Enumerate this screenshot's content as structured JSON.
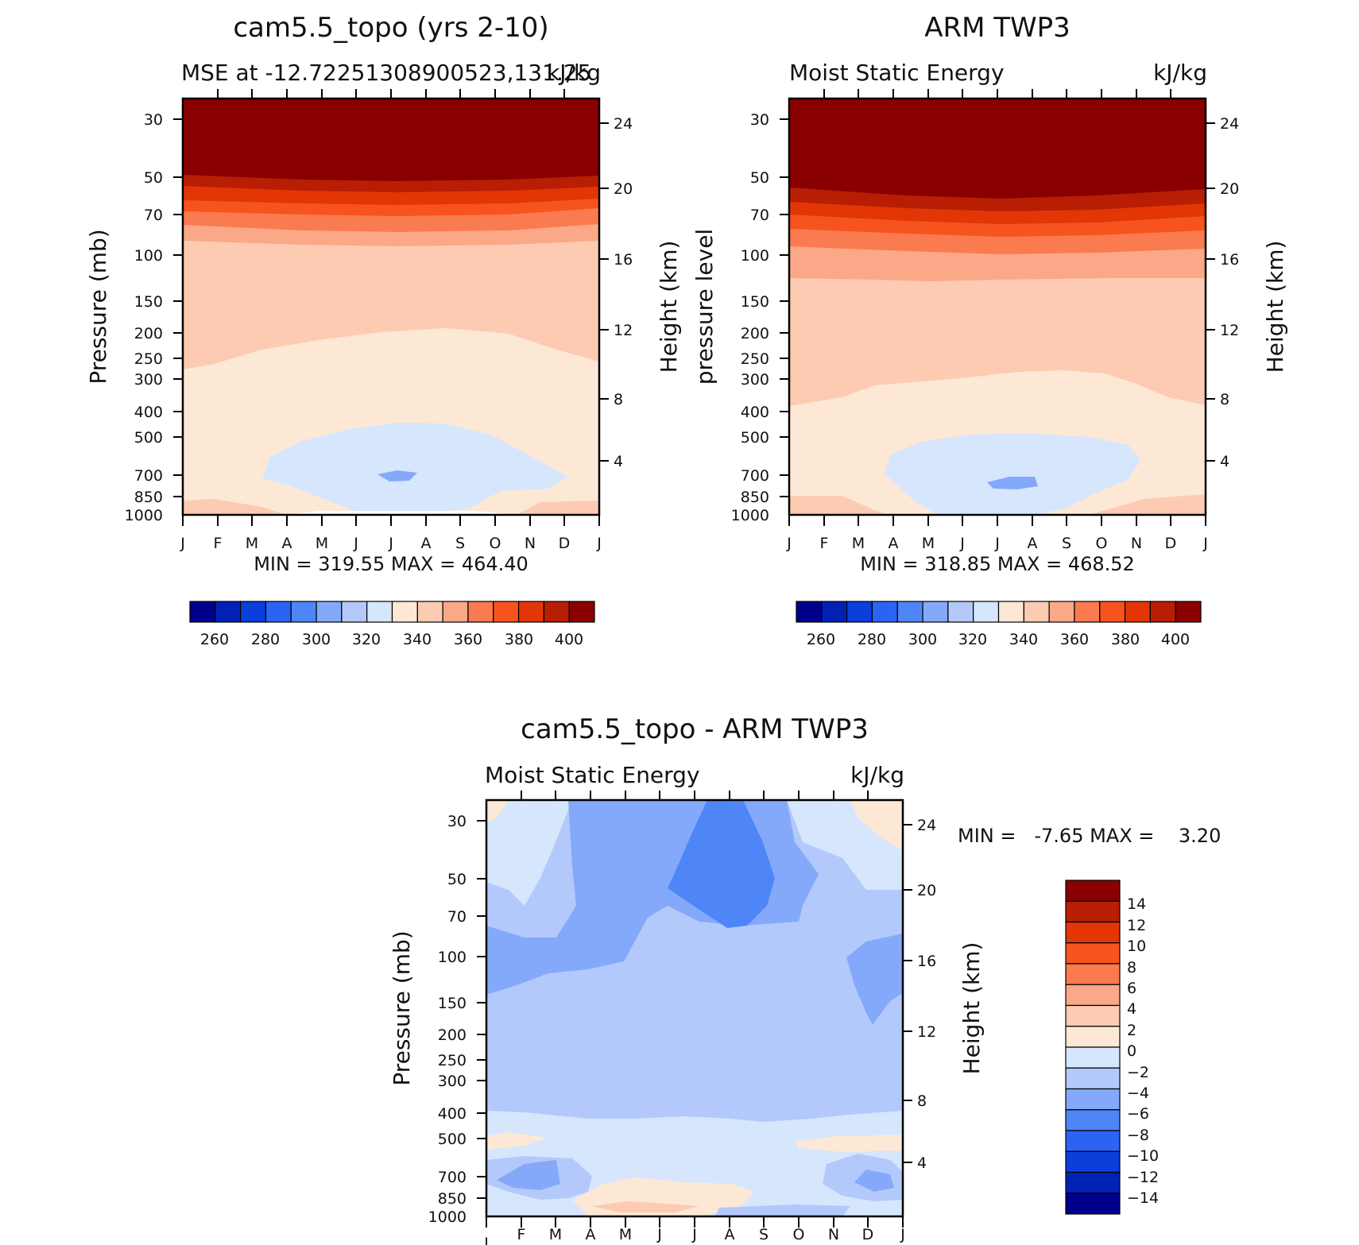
{
  "chart_data": [
    {
      "type": "contour",
      "title": "cam5.5_topo (yrs 2-10)",
      "subtitle_left": "MSE at -12.72251308900523,131.25",
      "subtitle_right": "kJ/kg",
      "ylabel": "Pressure (mb)",
      "ylabel_right": "Height (km)",
      "x_ticks": [
        "J",
        "F",
        "M",
        "A",
        "M",
        "J",
        "J",
        "A",
        "S",
        "O",
        "N",
        "D",
        "J"
      ],
      "y_ticks": [
        "30",
        "50",
        "70",
        "100",
        "150",
        "200",
        "250",
        "300",
        "400",
        "500",
        "700",
        "850",
        "1000"
      ],
      "y_ticks_right": [
        "24",
        "20",
        "16",
        "12",
        "8",
        "4"
      ],
      "stats": "MIN = 319.55 MAX = 464.40",
      "colorbar_labels": [
        "260",
        "280",
        "300",
        "320",
        "340",
        "360",
        "380",
        "400"
      ],
      "min": 319.55,
      "max": 464.4
    },
    {
      "type": "contour",
      "title": "ARM TWP3",
      "subtitle_left": "Moist Static Energy",
      "subtitle_right": "kJ/kg",
      "ylabel": "pressure level",
      "ylabel_right": "Height (km)",
      "x_ticks": [
        "J",
        "F",
        "M",
        "A",
        "M",
        "J",
        "J",
        "A",
        "S",
        "O",
        "N",
        "D",
        "J"
      ],
      "y_ticks": [
        "30",
        "50",
        "70",
        "100",
        "150",
        "200",
        "250",
        "300",
        "400",
        "500",
        "700",
        "850",
        "1000"
      ],
      "y_ticks_right": [
        "24",
        "20",
        "16",
        "12",
        "8",
        "4"
      ],
      "stats": "MIN = 318.85 MAX = 468.52",
      "colorbar_labels": [
        "260",
        "280",
        "300",
        "320",
        "340",
        "360",
        "380",
        "400"
      ],
      "min": 318.85,
      "max": 468.52
    },
    {
      "type": "contour",
      "title": "cam5.5_topo - ARM TWP3",
      "subtitle_left": "Moist Static Energy",
      "subtitle_right": "kJ/kg",
      "ylabel": "Pressure (mb)",
      "ylabel_right": "Height (km)",
      "x_ticks": [
        "J",
        "F",
        "M",
        "A",
        "M",
        "J",
        "J",
        "A",
        "S",
        "O",
        "N",
        "D",
        "J"
      ],
      "y_ticks": [
        "30",
        "50",
        "70",
        "100",
        "150",
        "200",
        "250",
        "300",
        "400",
        "500",
        "700",
        "850",
        "1000"
      ],
      "y_ticks_right": [
        "24",
        "20",
        "16",
        "12",
        "8",
        "4"
      ],
      "stats": "MIN =   -7.65 MAX =    3.20",
      "colorbar_labels": [
        "14",
        "12",
        "10",
        "8",
        "6",
        "4",
        "2",
        "0",
        "−2",
        "−4",
        "−6",
        "−8",
        "−10",
        "−12",
        "−14"
      ],
      "min": -7.65,
      "max": 3.2
    }
  ],
  "colors": {
    "abs_scale": [
      "#00008c",
      "#0022b4",
      "#0b3fdc",
      "#2b63f5",
      "#4f86f7",
      "#84a9fa",
      "#b3c9fb",
      "#d6e6fd",
      "#fde8d6",
      "#fccbb2",
      "#fba888",
      "#fa7b4f",
      "#f7531e",
      "#e23606",
      "#b81e04",
      "#8a0000"
    ],
    "diff_scale": [
      "#8a0000",
      "#b81e04",
      "#e23606",
      "#f7531e",
      "#fa7b4f",
      "#fba888",
      "#fccbb2",
      "#fde8d6",
      "#d6e6fd",
      "#b3c9fb",
      "#84a9fa",
      "#4f86f7",
      "#2b63f5",
      "#0b3fdc",
      "#0022b4",
      "#00008c"
    ]
  }
}
